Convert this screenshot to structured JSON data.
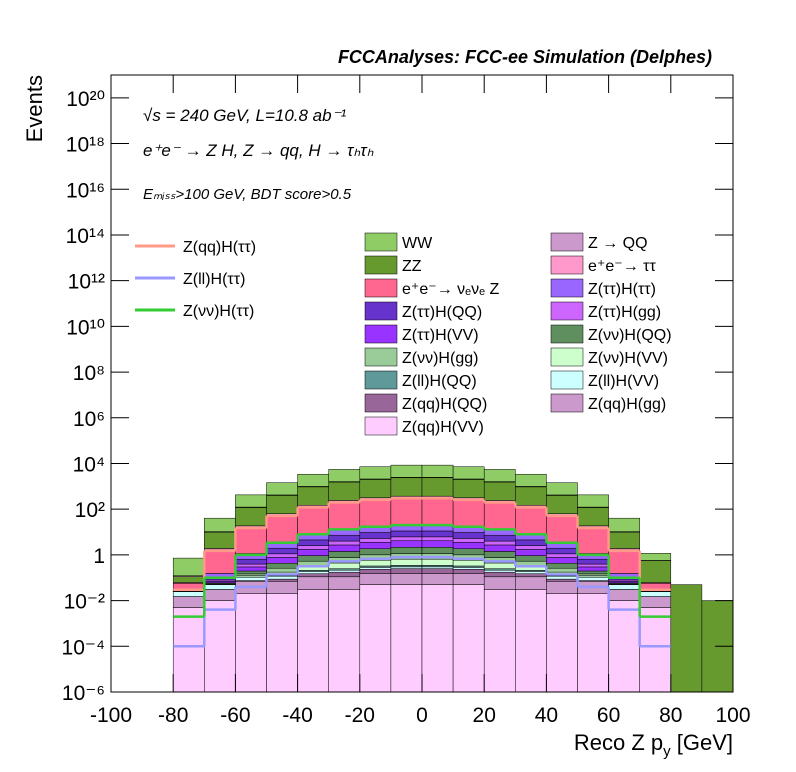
{
  "chart_data": {
    "type": "stacked_histogram",
    "title": "FCCAnalyses: FCC-ee Simulation (Delphes)",
    "annotations": [
      "√s = 240 GeV, L=10.8 ab⁻¹",
      "e⁺e⁻ → Z H, Z → qq, H → τₕτₕ",
      "Eₘᵢₛₛ>100 GeV, BDT score>0.5"
    ],
    "ylabel": "Events",
    "xlabel": [
      "Reco Z p",
      "y",
      " [GeV]"
    ],
    "log_y": true,
    "xlim": [
      -100,
      100
    ],
    "ylim": [
      1e-06,
      1e+21
    ],
    "xticks": [
      -100,
      -80,
      -60,
      -40,
      -20,
      0,
      20,
      40,
      60,
      80,
      100
    ],
    "yticks": [
      {
        "value": 1e-06,
        "label": "10⁻⁶"
      },
      {
        "value": 0.0001,
        "label": "10⁻⁴"
      },
      {
        "value": 0.01,
        "label": "10⁻²"
      },
      1,
      {
        "value": 100,
        "label": "10²"
      },
      {
        "value": 10000.0,
        "label": "10⁴"
      },
      {
        "value": 1000000.0,
        "label": "10⁶"
      },
      {
        "value": 100000000.0,
        "label": "10⁸"
      },
      {
        "value": 10000000000.0,
        "label": "10¹⁰"
      },
      {
        "value": 1000000000000.0,
        "label": "10¹²"
      },
      {
        "value": 100000000000000.0,
        "label": "10¹⁴"
      },
      {
        "value": 1e+16,
        "label": "10¹⁶"
      },
      {
        "value": 1e+18,
        "label": "10¹⁸"
      },
      {
        "value": 1e+20,
        "label": "10²⁰"
      }
    ],
    "bins": [
      -100,
      -90,
      -80,
      -70,
      -60,
      -50,
      -40,
      -30,
      -20,
      -10,
      0,
      10,
      20,
      30,
      40,
      50,
      60,
      70,
      80,
      90,
      100
    ],
    "series": [
      {
        "name": "WW",
        "color": "#8fcc66",
        "values": [
          0,
          0,
          0.6,
          30,
          300,
          1020,
          2400,
          3900,
          5100,
          6000,
          6000,
          5100,
          3900,
          2400,
          1020,
          300,
          30,
          0.6,
          0,
          0
        ]
      },
      {
        "name": "Z → QQ",
        "color": "#cc99cc",
        "values": [
          0,
          0,
          0.01,
          0.5,
          5,
          17,
          40,
          65,
          85,
          100,
          100,
          85,
          65,
          40,
          17,
          5,
          0.5,
          0.01,
          0,
          0
        ]
      },
      {
        "name": "ZZ",
        "color": "#66992e",
        "values": [
          0,
          1e-06,
          0.05,
          8,
          100,
          340,
          800,
          1300,
          1700,
          2000,
          2000,
          1700,
          1300,
          800,
          340,
          100,
          8,
          0.5,
          0.05,
          0.01
        ]
      },
      {
        "name": "e⁺e⁻→ ττ",
        "color": "#ff99cc",
        "values": [
          0,
          0,
          0.005,
          0.25,
          2.5,
          8.5,
          20,
          32.5,
          42.5,
          50,
          50,
          42.5,
          32.5,
          20,
          8.5,
          2.5,
          0.25,
          0.005,
          0,
          0
        ]
      },
      {
        "name": "e⁺e⁻→ νₑνₑ Z",
        "color": "#ff6690",
        "values": [
          0,
          0,
          0.03,
          1.5,
          15,
          51,
          120,
          195,
          255,
          300,
          300,
          255,
          195,
          120,
          51,
          15,
          1.5,
          0.03,
          0,
          0
        ]
      },
      {
        "name": "Z(ττ)H(ττ)",
        "color": "#9966ff",
        "values": [
          0,
          0,
          0.001,
          0.05,
          0.5,
          1.7,
          4,
          6.5,
          8.5,
          10,
          10,
          8.5,
          6.5,
          4,
          1.7,
          0.5,
          0.05,
          0.001,
          0,
          0
        ]
      },
      {
        "name": "Z(ττ)H(QQ)",
        "color": "#6633cc",
        "values": [
          0,
          0,
          0.0005,
          0.025,
          0.25,
          0.85,
          2,
          3.25,
          4.25,
          5,
          5,
          4.25,
          3.25,
          2,
          0.85,
          0.25,
          0.025,
          0.0005,
          0,
          0
        ]
      },
      {
        "name": "Z(ττ)H(gg)",
        "color": "#cc66ff",
        "values": [
          0,
          0,
          0.0002,
          0.01,
          0.1,
          0.34,
          0.8,
          1.3,
          1.7,
          2,
          2,
          1.7,
          1.3,
          0.8,
          0.34,
          0.1,
          0.01,
          0.0002,
          0,
          0
        ]
      },
      {
        "name": "Z(ττ)H(VV)",
        "color": "#9933ff",
        "values": [
          0,
          0,
          0.0002,
          0.01,
          0.1,
          0.34,
          0.8,
          1.3,
          1.7,
          2,
          2,
          1.7,
          1.3,
          0.8,
          0.34,
          0.1,
          0.01,
          0.0002,
          0,
          0
        ]
      },
      {
        "name": "Z(νν)H(QQ)",
        "color": "#5f8f5f",
        "values": [
          0,
          0,
          0.0001,
          0.005,
          0.05,
          0.17,
          0.4,
          0.65,
          0.85,
          1,
          1,
          0.85,
          0.65,
          0.4,
          0.17,
          0.05,
          0.005,
          0.0001,
          0,
          0
        ]
      },
      {
        "name": "Z(νν)H(gg)",
        "color": "#99cc99",
        "values": [
          0,
          0,
          5e-05,
          0.0025,
          0.025,
          0.085,
          0.2,
          0.325,
          0.425,
          0.5,
          0.5,
          0.425,
          0.325,
          0.2,
          0.085,
          0.025,
          0.0025,
          5e-05,
          0,
          0
        ]
      },
      {
        "name": "Z(νν)H(VV)",
        "color": "#ccffcc",
        "values": [
          0,
          0,
          3e-05,
          0.0015,
          0.015,
          0.051,
          0.12,
          0.195,
          0.255,
          0.3,
          0.3,
          0.255,
          0.195,
          0.12,
          0.051,
          0.015,
          0.0015,
          3e-05,
          0,
          0
        ]
      },
      {
        "name": "Z(ll)H(QQ)",
        "color": "#5f9999",
        "values": [
          0,
          0,
          5e-06,
          0.00025,
          0.0025,
          0.0085,
          0.02,
          0.0325,
          0.0425,
          0.05,
          0.05,
          0.0425,
          0.0325,
          0.02,
          0.0085,
          0.0025,
          0.00025,
          5e-06,
          0,
          0
        ]
      },
      {
        "name": "Z(ll)H(VV)",
        "color": "#ccffff",
        "values": [
          0,
          0,
          0.01,
          0.02,
          0.03,
          0.03,
          0.04,
          0.04,
          0.05,
          0.05,
          0.05,
          0.05,
          0.04,
          0.04,
          0.03,
          0.03,
          0.02,
          0.01,
          0,
          0
        ]
      },
      {
        "name": "Z(qq)H(QQ)",
        "color": "#996699",
        "values": [
          0,
          0,
          1e-05,
          0.0005,
          0.005,
          0.017,
          0.04,
          0.065,
          0.085,
          0.1,
          0.1,
          0.085,
          0.065,
          0.04,
          0.017,
          0.005,
          0.0005,
          1e-05,
          0,
          0
        ]
      },
      {
        "name": "Z(qq)H(gg)",
        "color": "#cc99cc",
        "values": [
          0,
          0,
          0.01,
          0.02,
          0.05,
          0.05,
          0.08,
          0.08,
          0.1,
          0.1,
          0.1,
          0.1,
          0.08,
          0.08,
          0.05,
          0.05,
          0.02,
          0.01,
          0,
          0
        ]
      },
      {
        "name": "Z(qq)H(VV)",
        "color": "#ffccff",
        "values": [
          0,
          0,
          0.005,
          0.01,
          0.02,
          0.02,
          0.03,
          0.03,
          0.05,
          0.05,
          0.05,
          0.05,
          0.03,
          0.03,
          0.02,
          0.02,
          0.01,
          0.005,
          0,
          0
        ]
      }
    ],
    "signals": [
      {
        "name": "Z(qq)H(ττ)",
        "color": "#ff9988",
        "values": [
          null,
          null,
          0.03,
          1.5,
          15,
          51,
          120,
          195,
          255,
          300,
          300,
          255,
          195,
          120,
          51,
          15,
          1.5,
          0.03,
          null,
          null
        ]
      },
      {
        "name": "Z(ll)H(ττ)",
        "color": "#9999ff",
        "values": [
          null,
          null,
          0.0001,
          0.004,
          0.04,
          0.14,
          0.32,
          0.52,
          0.68,
          0.8,
          0.8,
          0.68,
          0.52,
          0.32,
          0.14,
          0.04,
          0.004,
          0.0001,
          null,
          null
        ]
      },
      {
        "name": "Z(νν)H(ττ)",
        "color": "#33cc33",
        "values": [
          null,
          null,
          0.002,
          0.1,
          1,
          3.4,
          8,
          13,
          17,
          20,
          20,
          17,
          13,
          8,
          3.4,
          1,
          0.1,
          0.002,
          null,
          null
        ]
      }
    ]
  }
}
